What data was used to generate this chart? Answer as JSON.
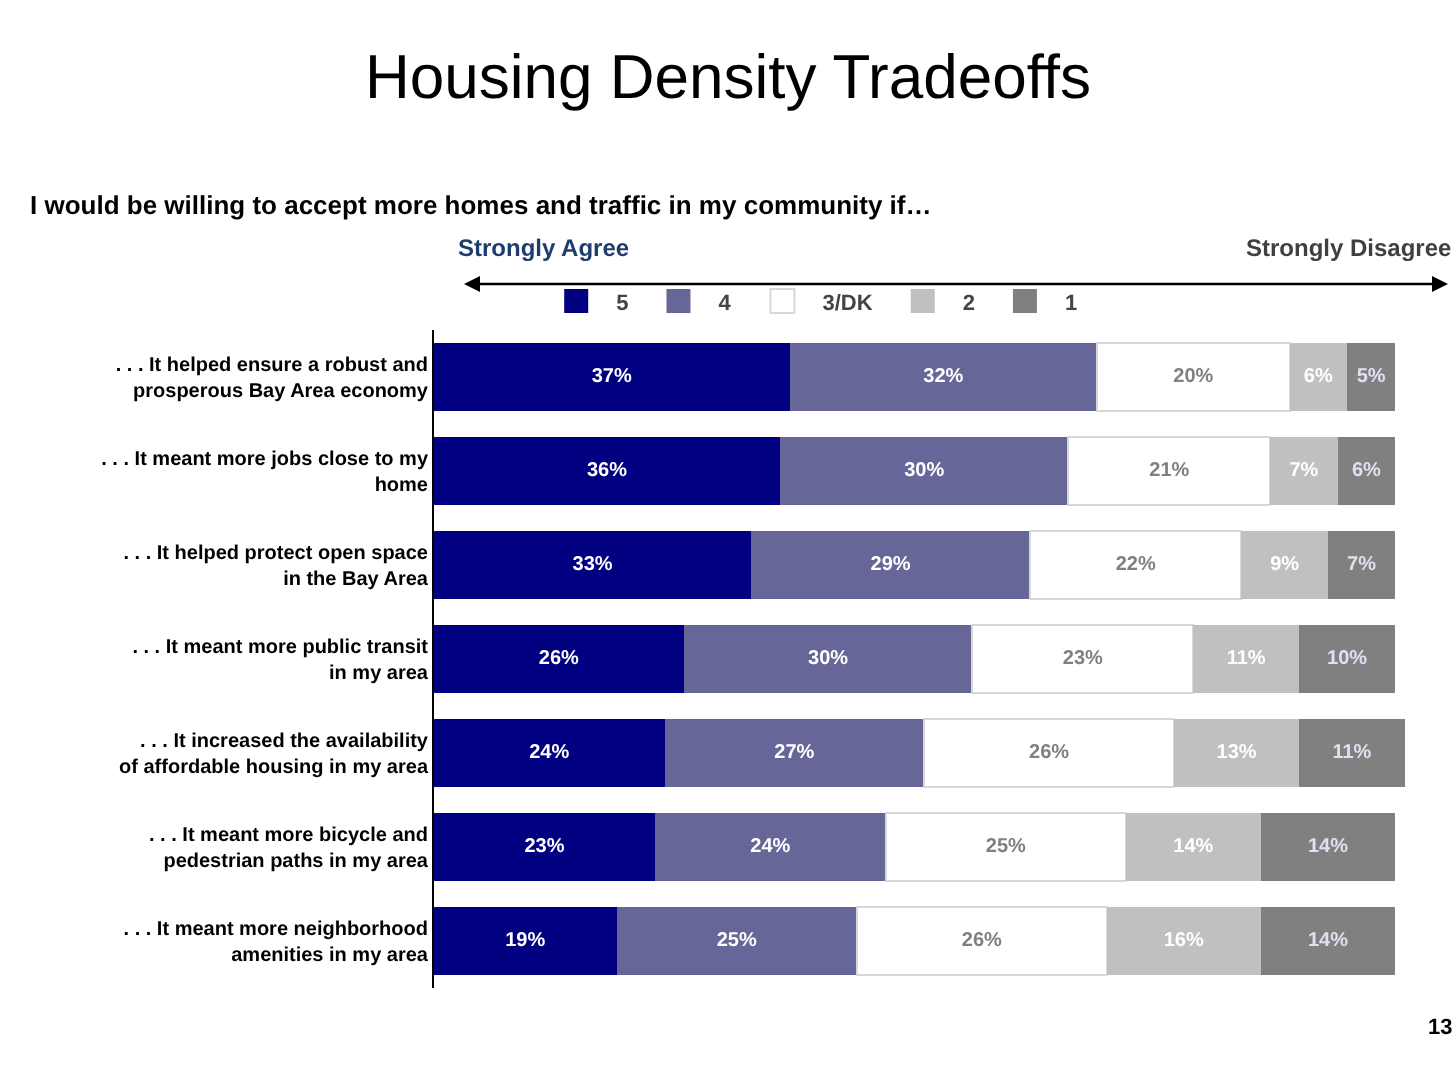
{
  "chart_data": {
    "type": "bar",
    "orientation": "horizontal",
    "stacked": true,
    "title": "Housing Density Tradeoffs",
    "subtitle": "I would be willing to accept more homes and traffic in my community if…",
    "annotations": [
      "Strongly Agree",
      "Strongly Disagree",
      "13"
    ],
    "legend": "top",
    "categories": [
      ". . . It helped ensure a robust and prosperous Bay Area economy",
      ". . . It meant more jobs close to my home",
      ". . . It helped protect open space in the Bay Area",
      ". . . It meant more public transit in my area",
      ". . . It increased the availability of affordable housing in my area",
      ". . . It meant more bicycle and pedestrian paths in my area",
      ". . . It meant more neighborhood amenities in my area"
    ],
    "series": [
      {
        "name": "5",
        "color": "#000080",
        "values": [
          37,
          36,
          33,
          26,
          24,
          23,
          19
        ],
        "value_labels": [
          "37%",
          "36%",
          "33%",
          "26%",
          "24%",
          "23%",
          "19%"
        ]
      },
      {
        "name": "4",
        "color": "#666699",
        "values": [
          32,
          30,
          29,
          30,
          27,
          24,
          25
        ],
        "value_labels": [
          "32%",
          "30%",
          "29%",
          "30%",
          "27%",
          "24%",
          "25%"
        ]
      },
      {
        "name": "3/DK",
        "color": "#ffffff",
        "values": [
          20,
          21,
          22,
          23,
          26,
          25,
          26
        ],
        "value_labels": [
          "20%",
          "21%",
          "22%",
          "23%",
          "26%",
          "25%",
          "26%"
        ]
      },
      {
        "name": "2",
        "color": "#c0c0c0",
        "values": [
          6,
          7,
          9,
          11,
          13,
          14,
          16
        ],
        "value_labels": [
          "6%",
          "7%",
          "9%",
          "11%",
          "13%",
          "14%",
          "16%"
        ]
      },
      {
        "name": "1",
        "color": "#808080",
        "values": [
          5,
          6,
          7,
          10,
          11,
          14,
          14
        ],
        "value_labels": [
          "5%",
          "6%",
          "7%",
          "10%",
          "11%",
          "14%",
          "14%"
        ]
      }
    ]
  }
}
